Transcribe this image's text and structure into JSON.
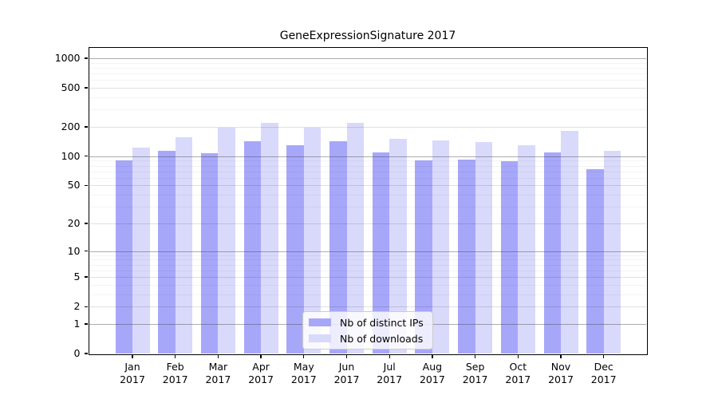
{
  "chart_data": {
    "type": "bar",
    "title": "GeneExpressionSignature 2017",
    "categories": [
      "Jan",
      "Feb",
      "Mar",
      "Apr",
      "May",
      "Jun",
      "Jul",
      "Aug",
      "Sep",
      "Oct",
      "Nov",
      "Dec"
    ],
    "year_label": "2017",
    "series": [
      {
        "name": "Nb of distinct IPs",
        "color": "#a7a7fa",
        "values": [
          90,
          113,
          107,
          142,
          131,
          142,
          109,
          91,
          93,
          89,
          109,
          74
        ]
      },
      {
        "name": "Nb of downloads",
        "color": "#d9d9fb",
        "values": [
          122,
          158,
          198,
          218,
          195,
          220,
          152,
          146,
          141,
          131,
          183,
          114
        ]
      }
    ],
    "yscale": "log1p",
    "ylim": [
      0,
      1000
    ],
    "y_ticks": [
      0,
      1,
      2,
      5,
      10,
      20,
      50,
      100,
      200,
      500,
      1000
    ],
    "y_decade_gridlines": [
      1,
      10,
      100,
      1000
    ],
    "y_minor_gridlines": [
      3,
      4,
      6,
      7,
      8,
      9,
      30,
      40,
      60,
      70,
      80,
      90,
      300,
      400,
      600,
      700,
      800,
      900
    ],
    "grid": true,
    "legend_position": "bottom-center"
  }
}
